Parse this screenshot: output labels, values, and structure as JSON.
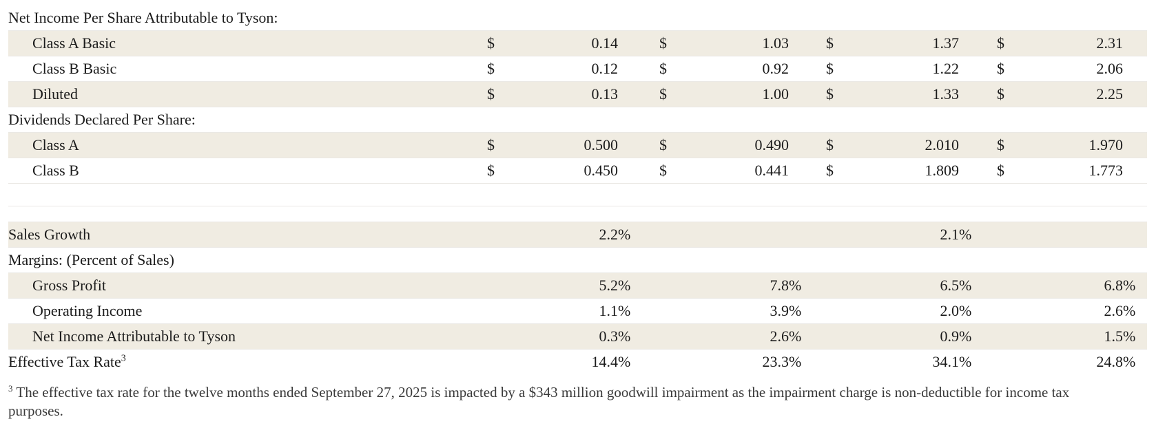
{
  "colors": {
    "row_shade": "#f0ece2",
    "text": "#1b1b1b",
    "footnote_text": "#3a3a3a"
  },
  "table": {
    "currency_symbol": "$",
    "percent_symbol": "%",
    "rows": [
      {
        "label": "Net Income Per Share Attributable to Tyson:",
        "type": "section",
        "indent": false,
        "shaded": false
      },
      {
        "label": "Class A Basic",
        "type": "currency",
        "indent": true,
        "shaded": true,
        "values": [
          "0.14",
          "1.03",
          "1.37",
          "2.31"
        ]
      },
      {
        "label": "Class B Basic",
        "type": "currency",
        "indent": true,
        "shaded": false,
        "values": [
          "0.12",
          "0.92",
          "1.22",
          "2.06"
        ]
      },
      {
        "label": "Diluted",
        "type": "currency",
        "indent": true,
        "shaded": true,
        "values": [
          "0.13",
          "1.00",
          "1.33",
          "2.25"
        ]
      },
      {
        "label": "Dividends Declared Per Share:",
        "type": "section",
        "indent": false,
        "shaded": false
      },
      {
        "label": "Class A",
        "type": "currency",
        "indent": true,
        "shaded": true,
        "values": [
          "0.500",
          "0.490",
          "2.010",
          "1.970"
        ]
      },
      {
        "label": "Class B",
        "type": "currency",
        "indent": true,
        "shaded": false,
        "values": [
          "0.450",
          "0.441",
          "1.809",
          "1.773"
        ]
      },
      {
        "type": "spacer",
        "height": 32
      },
      {
        "type": "spacer",
        "height": 22
      },
      {
        "label": "Sales Growth",
        "type": "percent",
        "indent": false,
        "shaded": true,
        "values": [
          "2.2",
          "",
          "2.1",
          ""
        ]
      },
      {
        "label": "Margins: (Percent of Sales)",
        "type": "section",
        "indent": false,
        "shaded": false
      },
      {
        "label": "Gross Profit",
        "type": "percent",
        "indent": true,
        "shaded": true,
        "values": [
          "5.2",
          "7.8",
          "6.5",
          "6.8"
        ]
      },
      {
        "label": "Operating Income",
        "type": "percent",
        "indent": true,
        "shaded": false,
        "values": [
          "1.1",
          "3.9",
          "2.0",
          "2.6"
        ]
      },
      {
        "label": "Net Income Attributable to Tyson",
        "type": "percent",
        "indent": true,
        "shaded": true,
        "values": [
          "0.3",
          "2.6",
          "0.9",
          "1.5"
        ]
      },
      {
        "label": "Effective Tax Rate",
        "label_sup": "3",
        "type": "percent",
        "indent": false,
        "shaded": false,
        "values": [
          "14.4",
          "23.3",
          "34.1",
          "24.8"
        ]
      }
    ]
  },
  "footnote": {
    "sup": "3",
    "text": "The effective tax rate for the twelve months ended September 27, 2025 is impacted by a $343 million goodwill impairment as the impairment charge is non-deductible for income tax purposes."
  }
}
